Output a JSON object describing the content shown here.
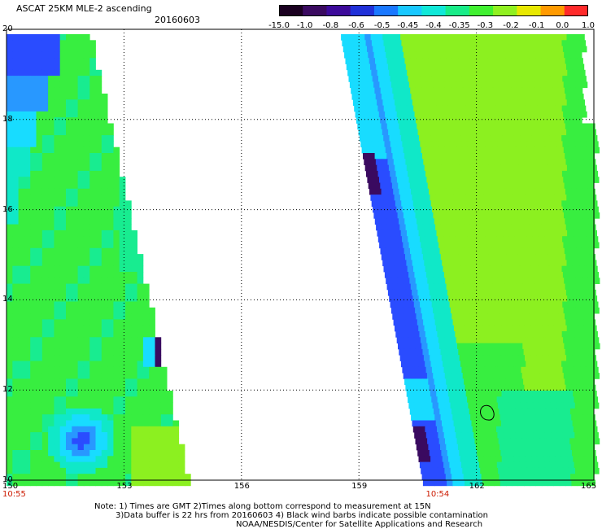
{
  "header": {
    "title": "ASCAT 25KM MLE-2 ascending",
    "date": "20160603"
  },
  "colorbar": {
    "labels": [
      "-15.0",
      "-1.0",
      "-0.8",
      "-0.6",
      "-0.5",
      "-0.45",
      "-0.4",
      "-0.35",
      "-0.3",
      "-0.2",
      "-0.1",
      "0.0",
      "1.0"
    ],
    "colors": [
      "#1a0020",
      "#3a0a60",
      "#3c0a9a",
      "#2030d8",
      "#1a78ff",
      "#18c8ff",
      "#10e8d8",
      "#18ec88",
      "#40f030",
      "#90f020",
      "#e8e800",
      "#ff9a00",
      "#ff2a2a"
    ]
  },
  "map": {
    "lon_range": [
      150,
      165
    ],
    "lat_range": [
      10,
      20
    ],
    "lon_ticks": [
      "150",
      "153",
      "156",
      "159",
      "162",
      "165"
    ],
    "lat_ticks": [
      "20",
      "18",
      "16",
      "14",
      "12",
      "10"
    ],
    "pass_times": [
      {
        "label": "10:55",
        "lon": 150
      },
      {
        "label": "10:54",
        "lon": 161
      }
    ],
    "colors": {
      "dark": "#3a0a60",
      "blue": "#2a4cff",
      "lightblue": "#2898ff",
      "cyan": "#18dcff",
      "aqua": "#10e8c8",
      "teal": "#18ec90",
      "green": "#38ee40",
      "lime": "#8cf020",
      "yellowgreen": "#a0f000"
    }
  },
  "notes": {
    "line1": "Note: 1) Times are GMT 2)Times along bottom correspond to measurement at 15N",
    "line2": "3)Data buffer is 22 hrs from 20160603 4) Black wind barbs indicate possible contamination",
    "line3": "NOAA/NESDIS/Center for Satellite Applications and Research"
  }
}
